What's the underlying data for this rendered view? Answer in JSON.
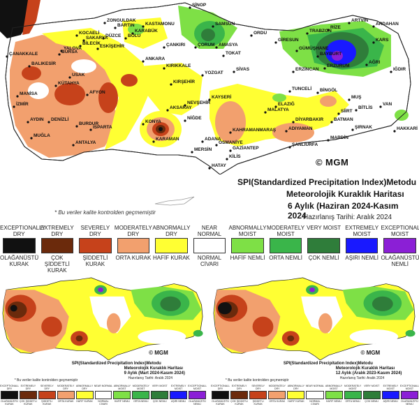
{
  "main": {
    "title_line1": "SPI(Standardized Precipitation Index)Metodu",
    "title_line2": "Meteorolojik Kuraklık Haritası",
    "title_line3": "6 Aylık (Haziran 2024-Kasım 2024",
    "prepared_date": "Hazırlanış Tarihi: Aralık 2024",
    "logo_text": "MGM",
    "note": "* Bu veriler kalite kontrolden geçmemiştir",
    "cities": [
      "SİNOP",
      "ZONGULDAK",
      "BARTIN",
      "KASTAMONU",
      "KARABÜK",
      "SAMSUN",
      "ORDU",
      "GİRESUN",
      "TRABZON",
      "RİZE",
      "ARTVİN",
      "ARDAHAN",
      "KARS",
      "IĞDIR",
      "AMASYA",
      "TOKAT",
      "ÇANKIRI",
      "ÇORUM",
      "SİVAS",
      "GÜMÜŞHANE",
      "BAYBURT",
      "ERZURUM",
      "ERZİNCAN",
      "AĞRI",
      "TUNCELİ",
      "BİNGÖL",
      "MUŞ",
      "BİTLİS",
      "VAN",
      "HAKKARİ",
      "ŞIRNAK",
      "SİİRT",
      "BATMAN",
      "MARDİN",
      "DİYARBAKIR",
      "ELAZIĞ",
      "MALATYA",
      "ADIYAMAN",
      "ŞANLIURFA",
      "GAZİANTEP",
      "KİLİS",
      "HATAY",
      "OSMANİYE",
      "ADANA",
      "MERSİN",
      "KAHRAMANMARAŞ",
      "KAYSERİ",
      "NEVŞEHİR",
      "NİĞDE",
      "AKSARAY",
      "KIRŞEHİR",
      "KIRIKKALE",
      "ANKARA",
      "ESKİŞEHİR",
      "KONYA",
      "KARAMAN",
      "ANTALYA",
      "ISPARTA",
      "BURDUR",
      "AFYON",
      "KÜTAHYA",
      "BİLECİK",
      "BURSA",
      "BALIKESİR",
      "MANİSA",
      "İZMİR",
      "AYDIN",
      "DENİZLİ",
      "MUĞLA",
      "USAK",
      "YOZGAT",
      "BOLU",
      "DÜZCE",
      "SAKARYA",
      "KOCAELİ",
      "YALOVA",
      "ÇANAKKALE"
    ]
  },
  "legend": [
    {
      "en": "EXCEPTIONALLY DRY",
      "tr": "OLAĞANÜSTÜ KURAK",
      "color": "#111111"
    },
    {
      "en": "EXTREMELY DRY",
      "tr": "ÇOK ŞİDDETLİ KURAK",
      "color": "#6b2a0c"
    },
    {
      "en": "SEVERELY DRY",
      "tr": "ŞİDDETLİ KURAK",
      "color": "#c6421b"
    },
    {
      "en": "MODERATELY DRY",
      "tr": "ORTA KURAK",
      "color": "#f2a06e"
    },
    {
      "en": "ABNORMALLY DRY",
      "tr": "HAFİF KURAK",
      "color": "#ffff33"
    },
    {
      "en": "NEAR NORMAL",
      "tr": "NORMAL CİVARI",
      "color": "#ffffff"
    },
    {
      "en": "ABNORMALLY MOIST",
      "tr": "HAFİF NEMLİ",
      "color": "#7ee046"
    },
    {
      "en": "MODERATELY MOIST",
      "tr": "ORTA NEMLİ",
      "color": "#3ab54a"
    },
    {
      "en": "VERY MOIST",
      "tr": "ÇOK NEMLİ",
      "color": "#2f7d3a"
    },
    {
      "en": "EXTREMELY MOIST",
      "tr": "AŞIRI NEMLİ",
      "color": "#1919ff"
    },
    {
      "en": "EXCEPTIONALLY MOIST",
      "tr": "OLAĞANÜSTÜ NEMLİ",
      "color": "#8b1fd6"
    }
  ],
  "sub_left": {
    "title_line1": "SPI(Standardized Precipitation Index)Metodu",
    "title_line2": "Meteorolojik Kuraklık Haritası",
    "title_line3": "9 Aylık (Mart 2024-Kasım 2024)",
    "prepared_date": "Hazırlanış Tarihi: Aralık 2024",
    "logo_text": "MGM",
    "note": "* Bu veriler kalite kontrolden geçmemiştir"
  },
  "sub_right": {
    "title_line1": "SPI(Standardized Precipitation Index)Metodu",
    "title_line2": "Meteorolojik Kuraklık Haritası",
    "title_line3": "12 Aylık (Aralık 2023-Kasım 2024)",
    "prepared_date": "Hazırlanış Tarihi: Aralık 2024",
    "logo_text": "MGM",
    "note": "* Bu veriler kalite kontrolden geçmemiştir"
  }
}
